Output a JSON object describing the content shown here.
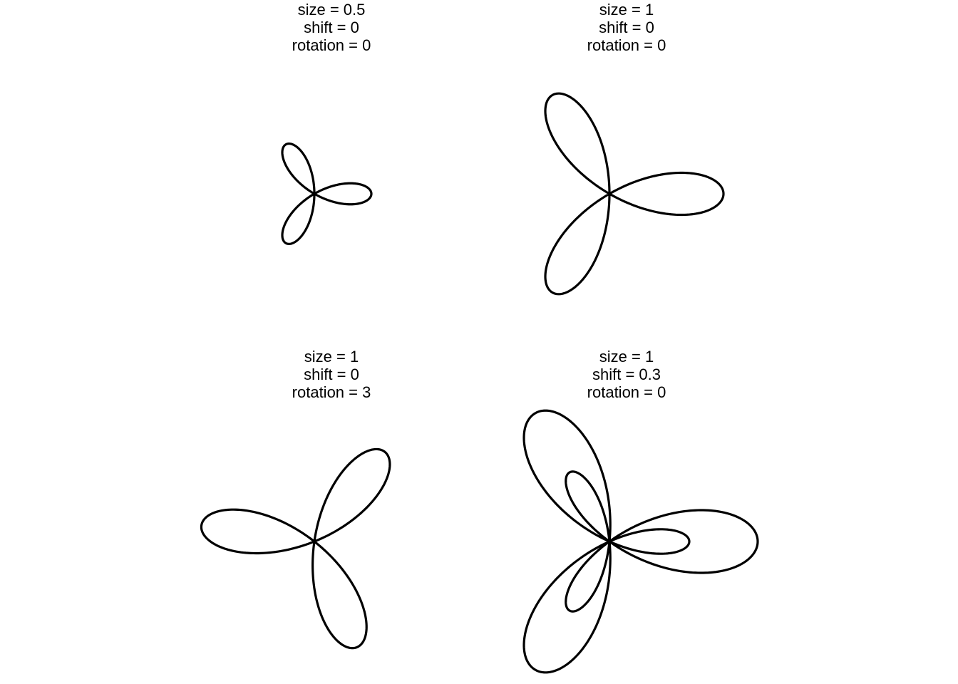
{
  "panels": [
    {
      "size_label": "size = 0.5",
      "shift_label": "shift = 0",
      "rotation_label": "rotation = 0",
      "size": 0.5,
      "shift": 0,
      "rotation": 0
    },
    {
      "size_label": "size = 1",
      "shift_label": "shift = 0",
      "rotation_label": "rotation = 0",
      "size": 1,
      "shift": 0,
      "rotation": 0
    },
    {
      "size_label": "size = 1",
      "shift_label": "shift = 0",
      "rotation_label": "rotation = 3",
      "size": 1,
      "shift": 0,
      "rotation": 3
    },
    {
      "size_label": "size = 1",
      "shift_label": "shift = 0.3",
      "rotation_label": "rotation = 0",
      "size": 1,
      "shift": 0.3,
      "rotation": 0
    }
  ],
  "colors": {
    "stroke": "#000000",
    "background": "#ffffff"
  }
}
